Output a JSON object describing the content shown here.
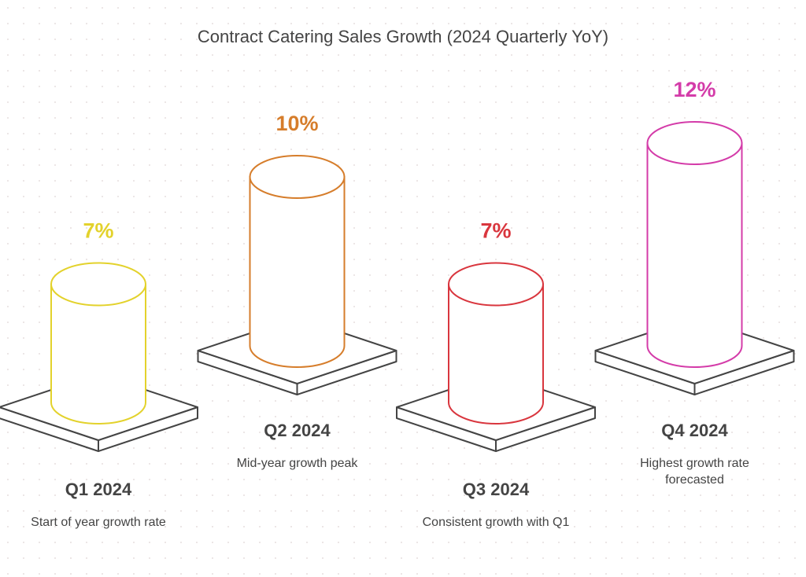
{
  "chart_data": {
    "type": "bar",
    "title": "Contract Catering Sales Growth (2024 Quarterly YoY)",
    "categories": [
      "Q1 2024",
      "Q2 2024",
      "Q3 2024",
      "Q4 2024"
    ],
    "values": [
      7,
      10,
      7,
      12
    ],
    "value_labels": [
      "7%",
      "10%",
      "7%",
      "12%"
    ],
    "descriptions": [
      "Start of year growth rate",
      "Mid-year growth peak",
      "Consistent growth with Q1",
      "Highest growth rate forecasted"
    ],
    "colors": [
      "#e3d22c",
      "#d67d2b",
      "#d9363e",
      "#d43ca9"
    ]
  }
}
